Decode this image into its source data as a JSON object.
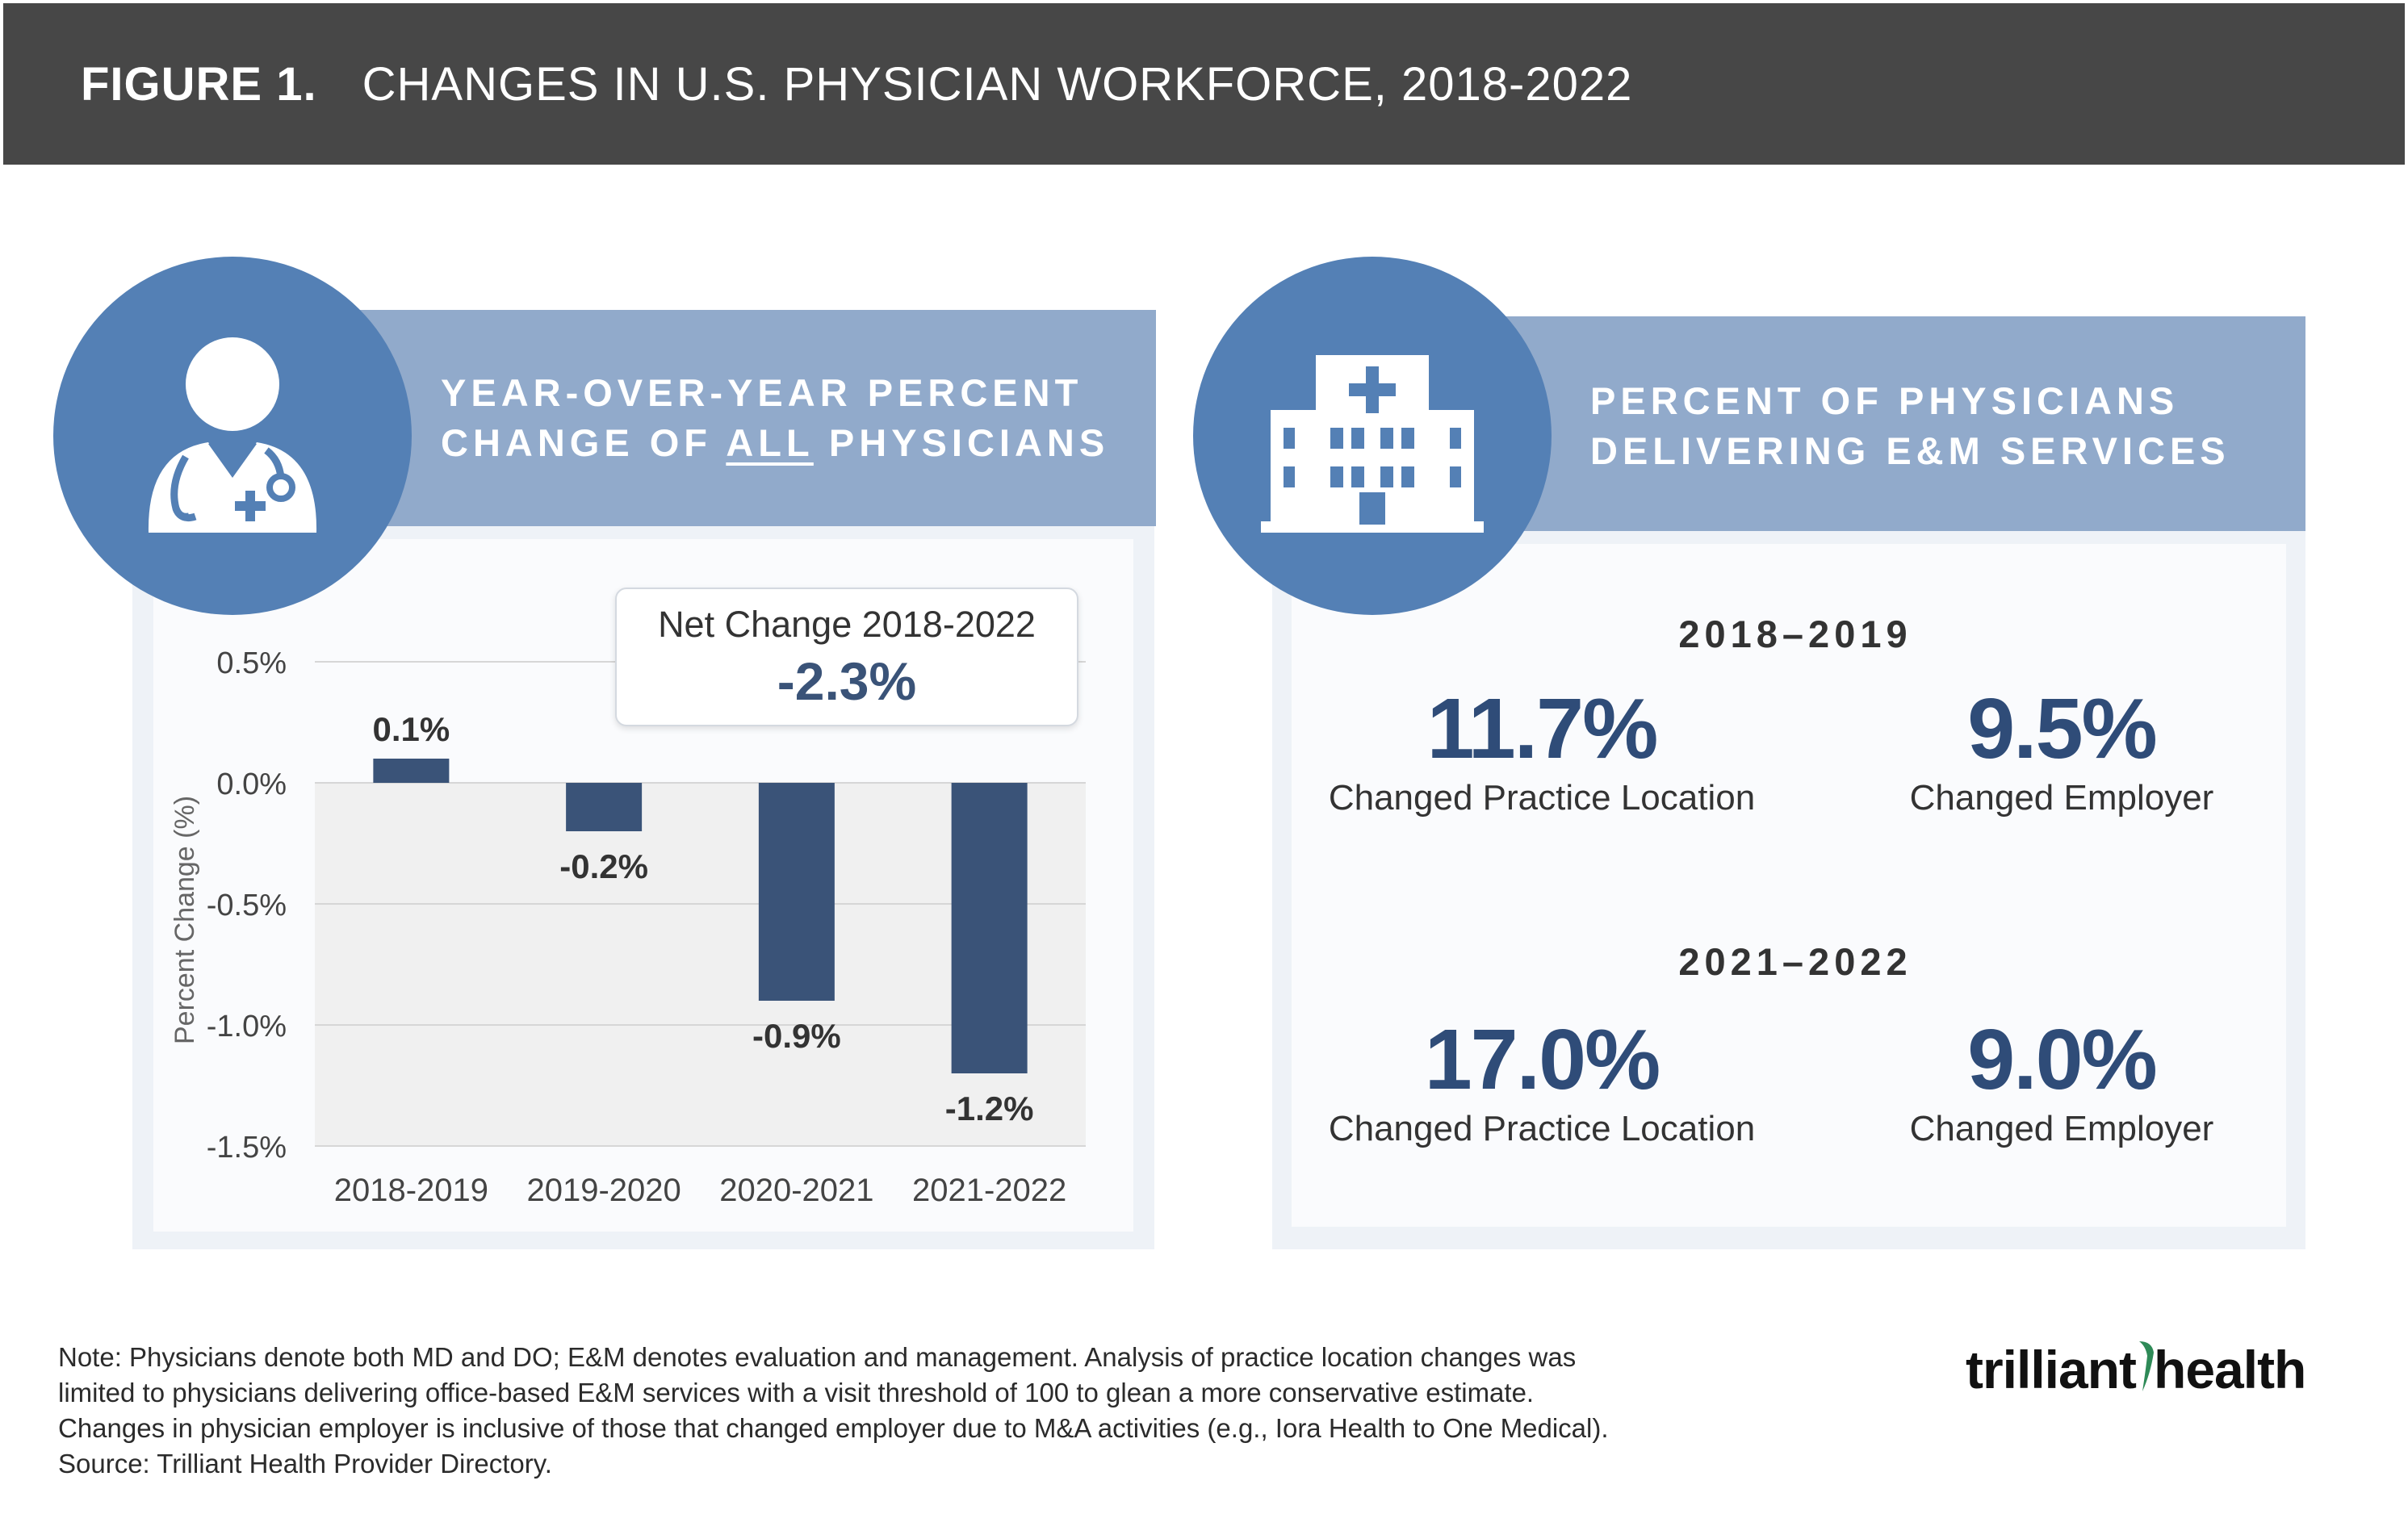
{
  "header": {
    "figure_label": "FIGURE 1.",
    "title": "CHANGES IN U.S. PHYSICIAN WORKFORCE, 2018-2022"
  },
  "left_panel": {
    "icon": "doctor-icon",
    "title_line1": "YEAR-OVER-YEAR PERCENT",
    "title_line2_pre": "CHANGE OF ",
    "title_line2_underlined": "ALL",
    "title_line2_post": " PHYSICIANS",
    "net_change_label": "Net Change 2018-2022",
    "net_change_value": "-2.3%"
  },
  "chart_data": {
    "type": "bar",
    "categories": [
      "2018-2019",
      "2019-2020",
      "2020-2021",
      "2021-2022"
    ],
    "values": [
      0.1,
      -0.2,
      -0.9,
      -1.2
    ],
    "value_labels": [
      "0.1%",
      "-0.2%",
      "-0.9%",
      "-1.2%"
    ],
    "ylabel": "Percent Change (%)",
    "ylim": [
      -1.5,
      0.5
    ],
    "yticks": [
      0.5,
      0.0,
      -0.5,
      -1.0,
      -1.5
    ],
    "ytick_labels": [
      "0.5%",
      "0.0%",
      "-0.5%",
      "-1.0%",
      "-1.5%"
    ],
    "bar_color": "#3a5378",
    "grid": true,
    "negative_region_shaded": true
  },
  "right_panel": {
    "icon": "hospital-icon",
    "title_line1": "PERCENT OF PHYSICIANS",
    "title_line2": "DELIVERING E&M SERVICES",
    "periods": [
      {
        "label": "2018–2019",
        "stats": [
          {
            "value": "11.7%",
            "caption": "Changed Practice Location"
          },
          {
            "value": "9.5%",
            "caption": "Changed Employer"
          }
        ]
      },
      {
        "label": "2021–2022",
        "stats": [
          {
            "value": "17.0%",
            "caption": "Changed Practice Location"
          },
          {
            "value": "9.0%",
            "caption": "Changed Employer"
          }
        ]
      }
    ]
  },
  "footer": {
    "note_lines": [
      "Note: Physicians denote both MD and DO; E&M denotes evaluation and management. Analysis of practice location changes was",
      "limited to physicians delivering office-based E&M services with a visit threshold of 100 to glean a more conservative estimate.",
      "Changes in physician employer is inclusive of those that changed employer due to M&A activities (e.g., Iora Health to One Medical).",
      "Source: Trilliant Health Provider Directory."
    ],
    "logo_text_1": "trilliant",
    "logo_text_2": "health"
  },
  "colors": {
    "header_bg": "#474747",
    "band": "#91aacb",
    "circle": "#5480b5",
    "bar": "#3a5378",
    "stat_value": "#2f4c78",
    "logo_accent": "#2e8a57"
  }
}
